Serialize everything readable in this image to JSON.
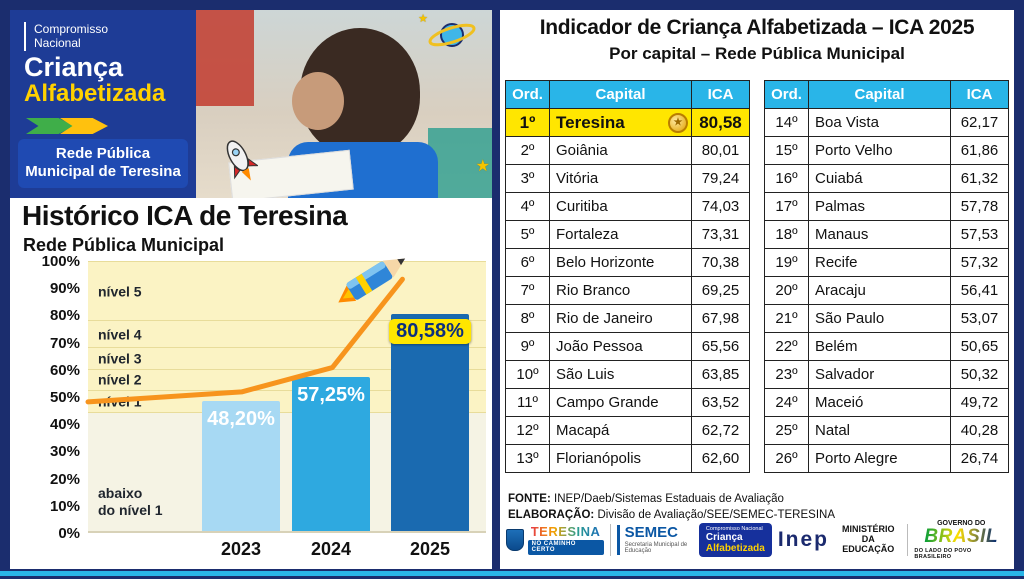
{
  "banner": {
    "program_line1": "Compromisso",
    "program_line2": "Nacional",
    "brand1": "Criança",
    "brand2": "Alfabetizada",
    "network_line1": "Rede Pública",
    "network_line2": "Municipal de Teresina"
  },
  "chart_data": [
    {
      "type": "bar",
      "title": "Histórico ICA de Teresina",
      "subtitle": "Rede Pública Municipal",
      "categories": [
        "2023",
        "2024",
        "2025"
      ],
      "values": [
        48.2,
        57.25,
        80.58
      ],
      "value_labels": [
        "48,20%",
        "57,25%",
        "80,58%"
      ],
      "ylim": [
        0,
        100
      ],
      "ytick_labels": [
        "100%",
        "90%",
        "80%",
        "70%",
        "60%",
        "50%",
        "40%",
        "30%",
        "20%",
        "10%",
        "0%"
      ],
      "bands": [
        {
          "label": "nível 5",
          "from": 78,
          "to": 100,
          "low": false
        },
        {
          "label": "nível 4",
          "from": 68,
          "to": 78,
          "low": false
        },
        {
          "label": "nível 3",
          "from": 60,
          "to": 68,
          "low": false
        },
        {
          "label": "nível 2",
          "from": 52,
          "to": 60,
          "low": false
        },
        {
          "label": "nível 1",
          "from": 44,
          "to": 52,
          "low": false
        },
        {
          "label": "abaixo\ndo nível 1",
          "from": 0,
          "to": 44,
          "low": true
        }
      ],
      "grid": false,
      "legend": false
    },
    {
      "type": "table",
      "title": "Indicador de Criança Alfabetizada – ICA 2025",
      "subtitle": "Por capital – Rede Pública Municipal",
      "headers": [
        "Ord.",
        "Capital",
        "ICA"
      ],
      "rows_left": [
        [
          "1º",
          "Teresina",
          "80,58"
        ],
        [
          "2º",
          "Goiânia",
          "80,01"
        ],
        [
          "3º",
          "Vitória",
          "79,24"
        ],
        [
          "4º",
          "Curitiba",
          "74,03"
        ],
        [
          "5º",
          "Fortaleza",
          "73,31"
        ],
        [
          "6º",
          "Belo Horizonte",
          "70,38"
        ],
        [
          "7º",
          "Rio Branco",
          "69,25"
        ],
        [
          "8º",
          "Rio de Janeiro",
          "67,98"
        ],
        [
          "9º",
          "João Pessoa",
          "65,56"
        ],
        [
          "10º",
          "São Luis",
          "63,85"
        ],
        [
          "11º",
          "Campo Grande",
          "63,52"
        ],
        [
          "12º",
          "Macapá",
          "62,72"
        ],
        [
          "13º",
          "Florianópolis",
          "62,60"
        ]
      ],
      "rows_right": [
        [
          "14º",
          "Boa Vista",
          "62,17"
        ],
        [
          "15º",
          "Porto Velho",
          "61,86"
        ],
        [
          "16º",
          "Cuiabá",
          "61,32"
        ],
        [
          "17º",
          "Palmas",
          "57,78"
        ],
        [
          "18º",
          "Manaus",
          "57,53"
        ],
        [
          "19º",
          "Recife",
          "57,32"
        ],
        [
          "20º",
          "Aracaju",
          "56,41"
        ],
        [
          "21º",
          "São Paulo",
          "53,07"
        ],
        [
          "22º",
          "Belém",
          "50,65"
        ],
        [
          "23º",
          "Salvador",
          "50,32"
        ],
        [
          "24º",
          "Maceió",
          "49,72"
        ],
        [
          "25º",
          "Natal",
          "40,28"
        ],
        [
          "26º",
          "Porto Alegre",
          "26,74"
        ]
      ],
      "highlight": {
        "table": "left",
        "row_index": 0,
        "color": "#ffe600"
      }
    }
  ],
  "source": {
    "fonte_label": "FONTE:",
    "fonte": "INEP/Daeb/Sistemas Estaduais de Avaliação",
    "elab_label": "ELABORAÇÃO:",
    "elab": "Divisão de Avaliação/SEE/SEMEC-TERESINA"
  },
  "footer": {
    "teresina_word": "TERESINA",
    "teresina_chip": "NO CAMINHO CERTO",
    "semec_word": "SEMEC",
    "semec_sub": "Secretaria Municipal de Educação",
    "ca_line1": "Compromisso Nacional",
    "ca_line2": "Criança",
    "ca_line3": "Alfabetizada",
    "inep": "Inep",
    "mec_line1": "MINISTÉRIO DA",
    "mec_line2": "EDUCAÇÃO",
    "gov_line1": "GOVERNO DO",
    "gov_brand": "BRASIL",
    "gov_line2": "DO LADO DO POVO BRASILEIRO"
  },
  "icons": {
    "medal-icon": "gold seal next to first place",
    "saturn-icon": "drawn planet saturn",
    "rocket-icon": "drawn rocket",
    "pencil-rocket-icon": "flying pencil with flames",
    "star-icon": "yellow star doodle"
  },
  "colors": {
    "frame": "#1b2d6e",
    "header_cyan": "#29b5e8",
    "highlight_yellow": "#ffe600",
    "bar_2023": "#a7d9f3",
    "bar_2024": "#2ea9e0",
    "bar_2025": "#1a6ab0",
    "trend_orange": "#f7941d"
  }
}
